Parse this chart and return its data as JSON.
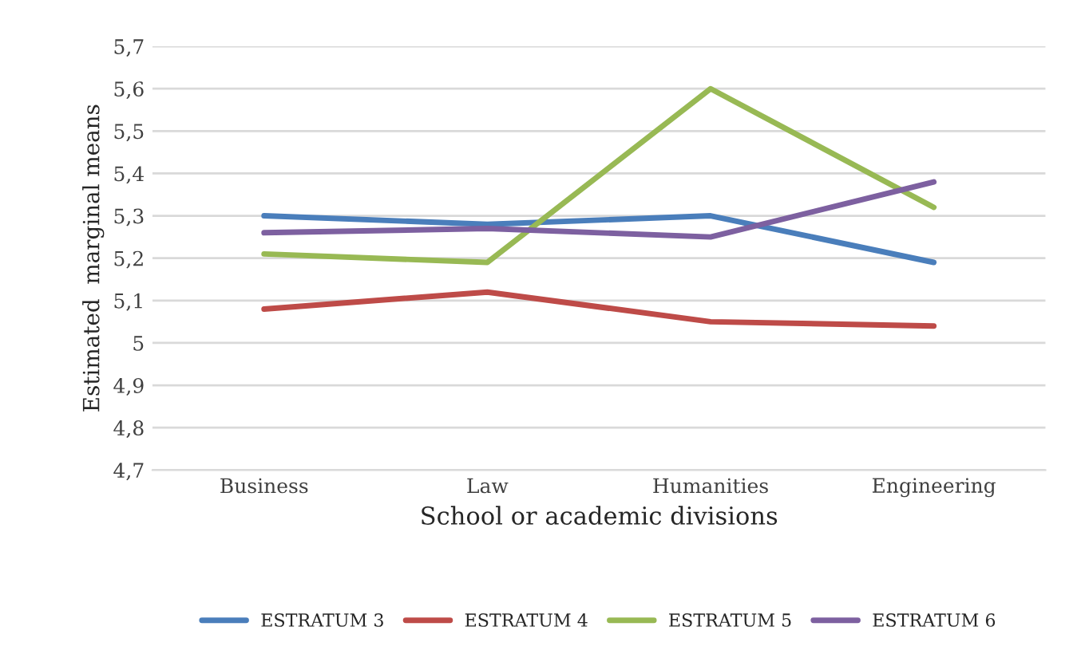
{
  "chart_data": {
    "type": "line",
    "xlabel": "School or academic divisions",
    "ylabel": "Estimated  marginal means",
    "categories": [
      "Business",
      "Law",
      "Humanities",
      "Engineering"
    ],
    "series": [
      {
        "name": "ESTRATUM 3",
        "color": "#4a7ebb",
        "values": [
          5.3,
          5.28,
          5.3,
          5.19
        ]
      },
      {
        "name": "ESTRATUM 4",
        "color": "#be4b48",
        "values": [
          5.08,
          5.12,
          5.05,
          5.04
        ]
      },
      {
        "name": "ESTRATUM 5",
        "color": "#98b954",
        "values": [
          5.21,
          5.19,
          5.6,
          5.32
        ]
      },
      {
        "name": "ESTRATUM 6",
        "color": "#7d60a0",
        "values": [
          5.26,
          5.27,
          5.25,
          5.38
        ]
      }
    ],
    "ylim": [
      4.7,
      5.7
    ],
    "yticks": [
      {
        "value": 4.7,
        "label": "4,7"
      },
      {
        "value": 4.8,
        "label": "4,8"
      },
      {
        "value": 4.9,
        "label": "4,9"
      },
      {
        "value": 5.0,
        "label": "5"
      },
      {
        "value": 5.1,
        "label": "5,1"
      },
      {
        "value": 5.2,
        "label": "5,2"
      },
      {
        "value": 5.3,
        "label": "5,3"
      },
      {
        "value": 5.4,
        "label": "5,4"
      },
      {
        "value": 5.5,
        "label": "5,5"
      },
      {
        "value": 5.6,
        "label": "5,6"
      },
      {
        "value": 5.7,
        "label": "5,7"
      }
    ],
    "grid": "y",
    "legend": "bottom",
    "marker": "none",
    "line_style": "solid"
  }
}
